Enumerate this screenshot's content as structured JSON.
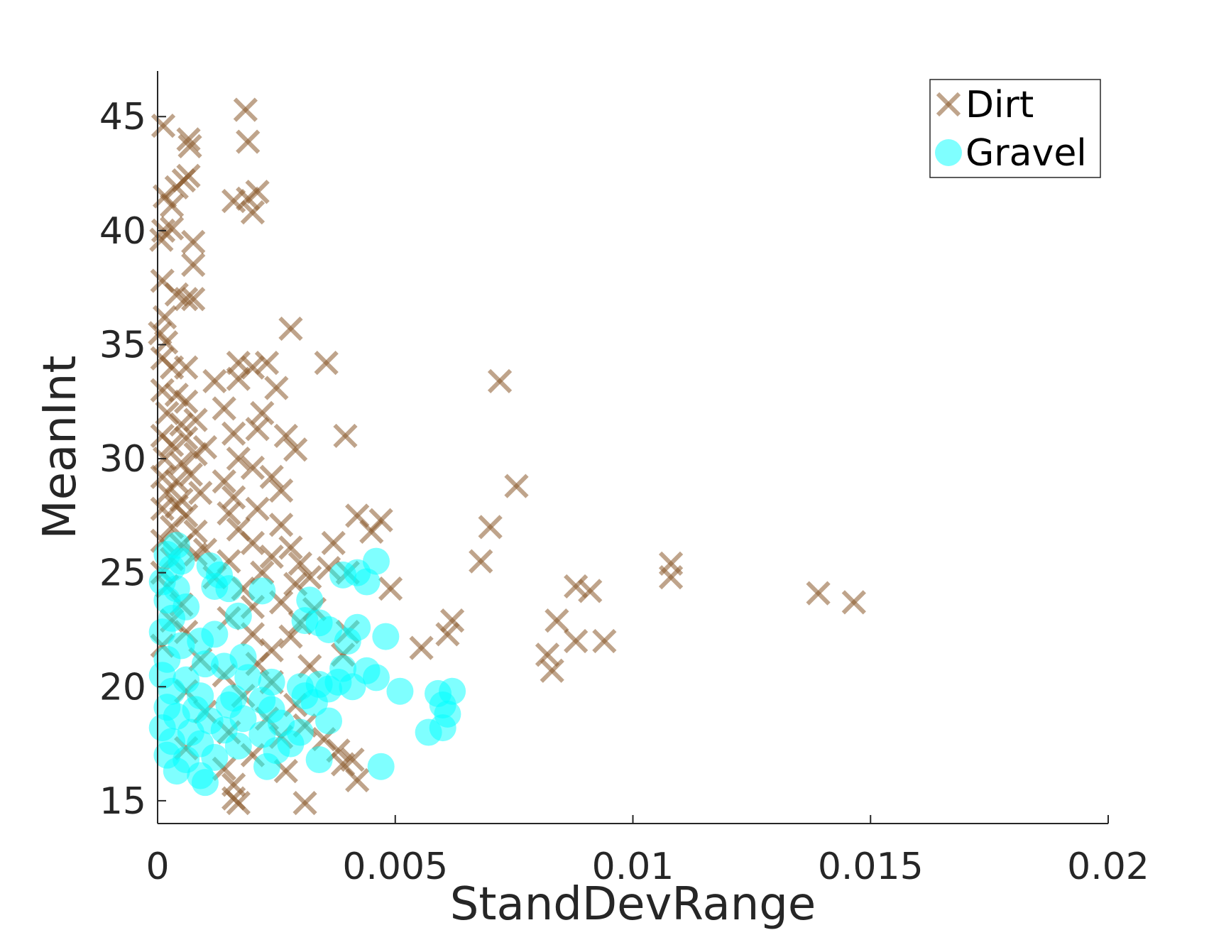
{
  "chart_data": {
    "type": "scatter",
    "xlabel": "StandDevRange",
    "ylabel": "MeanInt",
    "xlim": [
      0,
      0.02
    ],
    "ylim": [
      14,
      47
    ],
    "xticks": [
      0,
      0.005,
      0.01,
      0.015,
      0.02
    ],
    "xtick_labels": [
      "0",
      "0.005",
      "0.01",
      "0.015",
      "0.02"
    ],
    "yticks": [
      15,
      20,
      25,
      30,
      35,
      40,
      45
    ],
    "ytick_labels": [
      "15",
      "20",
      "25",
      "30",
      "35",
      "40",
      "45"
    ],
    "grid": false,
    "legend_position": "top-right",
    "series": [
      {
        "name": "Dirt",
        "marker": "x",
        "color": "#8B5A2B",
        "points": [
          [
            0.00012,
            44.6
          ],
          [
            0.00065,
            44.0
          ],
          [
            0.00068,
            43.7
          ],
          [
            0.00185,
            45.3
          ],
          [
            0.0019,
            43.9
          ],
          [
            0.00055,
            42.2
          ],
          [
            0.00065,
            42.4
          ],
          [
            0.0004,
            41.9
          ],
          [
            0.00015,
            41.5
          ],
          [
            0.0003,
            41.1
          ],
          [
            0.0016,
            41.3
          ],
          [
            0.0019,
            41.4
          ],
          [
            0.0021,
            41.7
          ],
          [
            0.002,
            40.8
          ],
          [
            0.00012,
            40.0
          ],
          [
            0.0003,
            40.1
          ],
          [
            8e-05,
            39.6
          ],
          [
            0.00075,
            39.5
          ],
          [
            0.00075,
            38.5
          ],
          [
            0.0001,
            37.8
          ],
          [
            0.0006,
            37.0
          ],
          [
            0.00075,
            37.0
          ],
          [
            0.0004,
            37.2
          ],
          [
            0.00015,
            36.2
          ],
          [
            5e-05,
            35.5
          ],
          [
            0.00018,
            35.1
          ],
          [
            0.0028,
            35.7
          ],
          [
            0.00355,
            34.2
          ],
          [
            0.0001,
            34.4
          ],
          [
            0.0003,
            34.0
          ],
          [
            0.0006,
            34.0
          ],
          [
            0.0017,
            34.2
          ],
          [
            0.002,
            34.0
          ],
          [
            0.0023,
            34.2
          ],
          [
            0.0017,
            33.5
          ],
          [
            0.0012,
            33.4
          ],
          [
            0.0025,
            33.1
          ],
          [
            0.0072,
            33.4
          ],
          [
            0.0001,
            33.0
          ],
          [
            0.0004,
            32.8
          ],
          [
            0.0006,
            32.5
          ],
          [
            0.0002,
            32.0
          ],
          [
            0.0005,
            31.5
          ],
          [
            0.0008,
            31.7
          ],
          [
            0.0014,
            32.2
          ],
          [
            0.0022,
            32.0
          ],
          [
            0.0001,
            31.0
          ],
          [
            0.0003,
            30.6
          ],
          [
            0.0006,
            30.9
          ],
          [
            0.001,
            30.5
          ],
          [
            0.0016,
            31.1
          ],
          [
            0.0021,
            31.3
          ],
          [
            0.0027,
            31.0
          ],
          [
            0.00395,
            31.0
          ],
          [
            0.00015,
            30.0
          ],
          [
            0.0005,
            29.8
          ],
          [
            0.0008,
            30.2
          ],
          [
            0.0017,
            30.0
          ],
          [
            0.002,
            29.6
          ],
          [
            0.0029,
            30.4
          ],
          [
            0.0001,
            29.2
          ],
          [
            0.0004,
            29.0
          ],
          [
            0.0007,
            29.3
          ],
          [
            0.0014,
            29.0
          ],
          [
            0.0024,
            29.2
          ],
          [
            0.0002,
            28.5
          ],
          [
            0.0005,
            28.2
          ],
          [
            0.0009,
            28.5
          ],
          [
            0.0016,
            28.3
          ],
          [
            0.0026,
            28.6
          ],
          [
            0.00755,
            28.8
          ],
          [
            0.0001,
            27.8
          ],
          [
            0.0004,
            27.9
          ],
          [
            0.0006,
            27.5
          ],
          [
            0.0015,
            27.6
          ],
          [
            0.0021,
            27.8
          ],
          [
            0.0042,
            27.5
          ],
          [
            0.0003,
            27.0
          ],
          [
            0.0008,
            26.8
          ],
          [
            0.0017,
            26.9
          ],
          [
            0.0026,
            27.1
          ],
          [
            0.0047,
            27.3
          ],
          [
            0.007,
            27.0
          ],
          [
            0.0001,
            26.4
          ],
          [
            0.0005,
            26.2
          ],
          [
            0.001,
            26.0
          ],
          [
            0.002,
            26.3
          ],
          [
            0.0028,
            26.1
          ],
          [
            0.0037,
            26.3
          ],
          [
            0.0045,
            26.8
          ],
          [
            0.0003,
            25.6
          ],
          [
            0.0008,
            25.8
          ],
          [
            0.0015,
            25.5
          ],
          [
            0.0024,
            25.7
          ],
          [
            0.003,
            25.4
          ],
          [
            0.0036,
            25.2
          ],
          [
            0.0068,
            25.5
          ],
          [
            0.0108,
            25.4
          ],
          [
            0.0001,
            25.0
          ],
          [
            0.0012,
            24.8
          ],
          [
            0.0022,
            25.0
          ],
          [
            0.0032,
            24.8
          ],
          [
            0.004,
            25.0
          ],
          [
            0.0108,
            24.8
          ],
          [
            0.0002,
            24.4
          ],
          [
            0.0018,
            24.3
          ],
          [
            0.0029,
            24.5
          ],
          [
            0.0049,
            24.3
          ],
          [
            0.0088,
            24.4
          ],
          [
            0.0091,
            24.2
          ],
          [
            0.0139,
            24.1
          ],
          [
            0.01465,
            23.7
          ],
          [
            0.0005,
            23.6
          ],
          [
            0.002,
            23.5
          ],
          [
            0.0026,
            23.7
          ],
          [
            0.0033,
            23.4
          ],
          [
            0.0003,
            22.9
          ],
          [
            0.0015,
            23.0
          ],
          [
            0.003,
            22.8
          ],
          [
            0.0062,
            22.9
          ],
          [
            0.0084,
            22.9
          ],
          [
            0.0006,
            22.4
          ],
          [
            0.002,
            22.3
          ],
          [
            0.0028,
            22.2
          ],
          [
            0.004,
            22.4
          ],
          [
            0.0061,
            22.3
          ],
          [
            0.0088,
            22.0
          ],
          [
            0.0094,
            22.0
          ],
          [
            0.0001,
            21.8
          ],
          [
            0.0024,
            21.6
          ],
          [
            0.0039,
            21.4
          ],
          [
            0.00555,
            21.7
          ],
          [
            0.0082,
            21.4
          ],
          [
            0.0009,
            21.2
          ],
          [
            0.0021,
            21.0
          ],
          [
            0.0032,
            20.9
          ],
          [
            0.0014,
            20.5
          ],
          [
            0.0024,
            20.2
          ],
          [
            0.0083,
            20.7
          ],
          [
            0.0006,
            19.8
          ],
          [
            0.0018,
            19.6
          ],
          [
            0.0029,
            19.2
          ],
          [
            0.001,
            18.9
          ],
          [
            0.0023,
            18.6
          ],
          [
            0.0031,
            18.3
          ],
          [
            0.0015,
            18.0
          ],
          [
            0.0026,
            17.8
          ],
          [
            0.0035,
            17.7
          ],
          [
            0.0006,
            17.3
          ],
          [
            0.002,
            17.0
          ],
          [
            0.0038,
            17.2
          ],
          [
            0.0039,
            16.6
          ],
          [
            0.0014,
            16.4
          ],
          [
            0.0027,
            16.3
          ],
          [
            0.0041,
            16.8
          ],
          [
            0.0016,
            15.7
          ],
          [
            0.0042,
            15.9
          ],
          [
            0.0016,
            15.1
          ],
          [
            0.0017,
            14.9
          ],
          [
            0.0031,
            14.9
          ]
        ]
      },
      {
        "name": "Gravel",
        "marker": "o",
        "color": "#00FFFF",
        "points": [
          [
            0.0004,
            26.2
          ],
          [
            0.0002,
            25.8
          ],
          [
            0.0005,
            25.5
          ],
          [
            0.0003,
            25.2
          ],
          [
            0.0011,
            25.3
          ],
          [
            0.0013,
            24.9
          ],
          [
            0.0046,
            25.5
          ],
          [
            0.0039,
            24.9
          ],
          [
            0.0042,
            25.0
          ],
          [
            0.0001,
            24.6
          ],
          [
            0.0004,
            24.3
          ],
          [
            0.0012,
            24.4
          ],
          [
            0.0015,
            24.3
          ],
          [
            0.0022,
            24.2
          ],
          [
            0.0044,
            24.6
          ],
          [
            0.0032,
            23.8
          ],
          [
            0.0002,
            23.8
          ],
          [
            0.0006,
            23.5
          ],
          [
            0.0017,
            23.1
          ],
          [
            0.0003,
            23.0
          ],
          [
            0.0031,
            22.9
          ],
          [
            0.0034,
            22.8
          ],
          [
            0.0036,
            22.5
          ],
          [
            0.0042,
            22.6
          ],
          [
            0.0048,
            22.2
          ],
          [
            0.0001,
            22.4
          ],
          [
            0.0009,
            22.0
          ],
          [
            0.0012,
            22.3
          ],
          [
            0.004,
            22.0
          ],
          [
            0.0005,
            21.8
          ],
          [
            0.0018,
            21.3
          ],
          [
            0.0002,
            21.2
          ],
          [
            0.001,
            21.0
          ],
          [
            0.0014,
            20.9
          ],
          [
            0.0039,
            20.8
          ],
          [
            0.0044,
            20.7
          ],
          [
            0.0046,
            20.4
          ],
          [
            0.0001,
            20.5
          ],
          [
            0.0006,
            20.3
          ],
          [
            0.0019,
            20.4
          ],
          [
            0.0024,
            20.2
          ],
          [
            0.003,
            20.0
          ],
          [
            0.0034,
            20.1
          ],
          [
            0.0036,
            19.9
          ],
          [
            0.0038,
            20.2
          ],
          [
            0.0041,
            20.0
          ],
          [
            0.0051,
            19.8
          ],
          [
            0.0059,
            19.7
          ],
          [
            0.0062,
            19.8
          ],
          [
            0.0003,
            19.8
          ],
          [
            0.0009,
            19.6
          ],
          [
            0.0016,
            19.5
          ],
          [
            0.0022,
            19.4
          ],
          [
            0.0031,
            19.6
          ],
          [
            0.0033,
            19.3
          ],
          [
            0.0002,
            19.1
          ],
          [
            0.0008,
            19.0
          ],
          [
            0.0015,
            19.2
          ],
          [
            0.0024,
            19.0
          ],
          [
            0.006,
            19.2
          ],
          [
            0.0061,
            18.8
          ],
          [
            0.0004,
            18.7
          ],
          [
            0.0011,
            18.5
          ],
          [
            0.0018,
            18.6
          ],
          [
            0.0026,
            18.4
          ],
          [
            0.0036,
            18.5
          ],
          [
            0.0001,
            18.2
          ],
          [
            0.0007,
            18.0
          ],
          [
            0.0014,
            18.1
          ],
          [
            0.0022,
            17.9
          ],
          [
            0.003,
            18.0
          ],
          [
            0.0057,
            18.0
          ],
          [
            0.006,
            18.2
          ],
          [
            0.0003,
            17.6
          ],
          [
            0.0009,
            17.5
          ],
          [
            0.0017,
            17.4
          ],
          [
            0.0025,
            17.2
          ],
          [
            0.0028,
            17.5
          ],
          [
            0.0002,
            17.0
          ],
          [
            0.0006,
            16.8
          ],
          [
            0.0012,
            16.9
          ],
          [
            0.0023,
            16.5
          ],
          [
            0.0034,
            16.8
          ],
          [
            0.0047,
            16.5
          ],
          [
            0.0004,
            16.3
          ],
          [
            0.0009,
            16.1
          ],
          [
            0.001,
            15.8
          ]
        ]
      }
    ]
  }
}
